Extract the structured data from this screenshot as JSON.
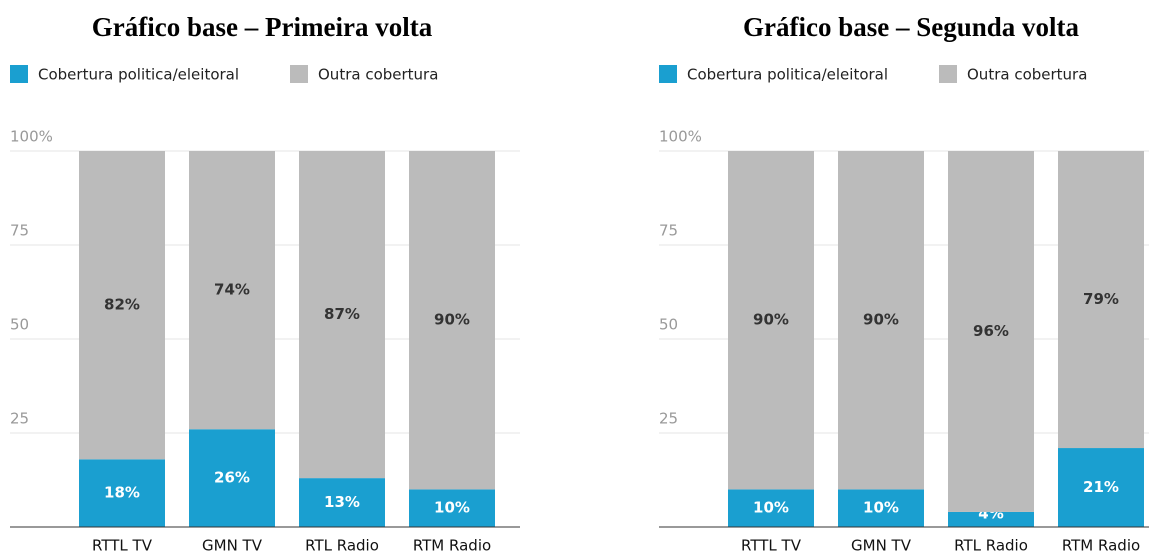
{
  "chart_data": [
    {
      "type": "stacked_bar",
      "title": "Gráfico base – Primeira volta",
      "categories": [
        "RTTL TV",
        "GMN TV",
        "RTL Radio",
        "RTM Radio"
      ],
      "series": [
        {
          "name": "Cobertura politica/eleitoral",
          "color": "#1a9fd0",
          "values": [
            18,
            26,
            13,
            10
          ],
          "value_labels": [
            "18%",
            "26%",
            "13%",
            "10%"
          ]
        },
        {
          "name": "Outra cobertura",
          "color": "#bbbbbb",
          "values": [
            82,
            74,
            87,
            90
          ],
          "value_labels": [
            "82%",
            "74%",
            "87%",
            "90%"
          ]
        }
      ],
      "ylim": [
        0,
        100
      ],
      "yticks": [
        25,
        50,
        75,
        {
          "value": 100,
          "label": "100%"
        }
      ],
      "grid": true
    },
    {
      "type": "stacked_bar",
      "title": "Gráfico base – Segunda volta",
      "categories": [
        "RTTL TV",
        "GMN TV",
        "RTL Radio",
        "RTM Radio"
      ],
      "series": [
        {
          "name": "Cobertura politica/eleitoral",
          "color": "#1a9fd0",
          "values": [
            10,
            10,
            4,
            21
          ],
          "value_labels": [
            "10%",
            "10%",
            "4%",
            "21%"
          ]
        },
        {
          "name": "Outra cobertura",
          "color": "#bbbbbb",
          "values": [
            90,
            90,
            96,
            79
          ],
          "value_labels": [
            "90%",
            "90%",
            "96%",
            "79%"
          ]
        }
      ],
      "ylim": [
        0,
        100
      ],
      "yticks": [
        25,
        50,
        75,
        {
          "value": 100,
          "label": "100%"
        }
      ],
      "grid": true
    }
  ]
}
